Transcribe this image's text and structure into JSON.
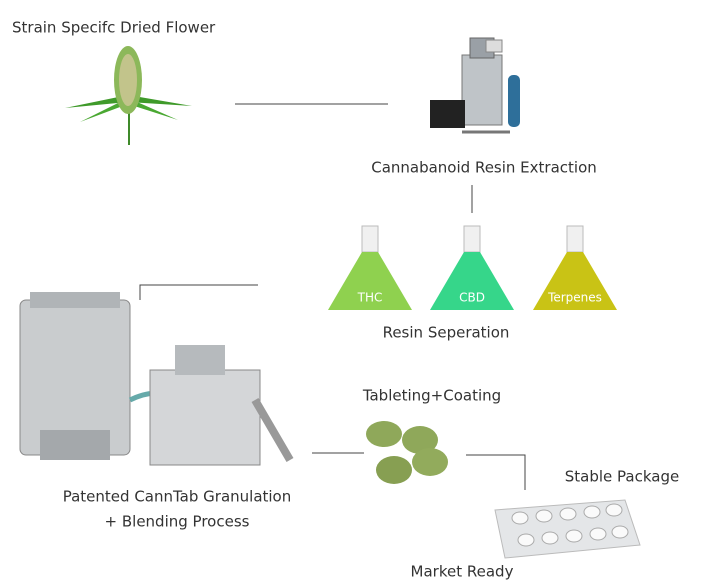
{
  "nodes": {
    "flower": {
      "label": "Strain Specifc Dried Flower"
    },
    "extraction": {
      "label": "Cannabanoid Resin Extraction"
    },
    "separation": {
      "label": "Resin Seperation",
      "flasks": [
        {
          "label": "THC"
        },
        {
          "label": "CBD"
        },
        {
          "label": "Terpenes"
        }
      ]
    },
    "granulation": {
      "label_lines": [
        "Patented CannTab Granulation",
        "+ Blending Process"
      ]
    },
    "tableting": {
      "label": "Tableting+Coating"
    },
    "package": {
      "label": "Stable Package"
    },
    "market": {
      "label": "Market Ready"
    }
  }
}
